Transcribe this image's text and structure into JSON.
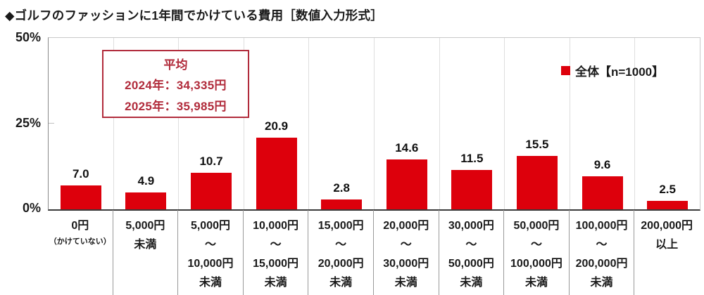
{
  "title": "◆ゴルフのファッションに1年間でかけている費用［数値入力形式］",
  "y_axis": {
    "ticks": [
      "50%",
      "25%",
      "0%"
    ]
  },
  "legend": {
    "label": "全体【n=1000】",
    "marker_color": "#dd000c",
    "position": "top-right"
  },
  "average_box": {
    "lines": [
      "平均",
      "2024年：34,335円",
      "2025年：35,985円"
    ]
  },
  "colors": {
    "bar": "#dd000c",
    "accent_red": "#b12b3b",
    "axis": "#3a3a3a",
    "gridline": "#dedede"
  },
  "chart_data": {
    "type": "bar",
    "title": "ゴルフのファッションに1年間でかけている費用［数値入力形式］",
    "series_name": "全体【n=1000】",
    "categories": [
      "0円（かけていない）",
      "5,000円未満",
      "5,000円～10,000円未満",
      "10,000円～15,000円未満",
      "15,000円～20,000円未満",
      "20,000円～30,000円未満",
      "30,000円～50,000円未満",
      "50,000円～100,000円未満",
      "100,000円～200,000円未満",
      "200,000円以上"
    ],
    "category_lines": [
      [
        "0円",
        "（かけていない）"
      ],
      [
        "5,000円",
        "未満"
      ],
      [
        "5,000円",
        "～",
        "10,000円",
        "未満"
      ],
      [
        "10,000円",
        "～",
        "15,000円",
        "未満"
      ],
      [
        "15,000円",
        "～",
        "20,000円",
        "未満"
      ],
      [
        "20,000円",
        "～",
        "30,000円",
        "未満"
      ],
      [
        "30,000円",
        "～",
        "50,000円",
        "未満"
      ],
      [
        "50,000円",
        "～",
        "100,000円",
        "未満"
      ],
      [
        "100,000円",
        "～",
        "200,000円",
        "未満"
      ],
      [
        "200,000円",
        "以上"
      ]
    ],
    "values": [
      7.0,
      4.9,
      10.7,
      20.9,
      2.8,
      14.6,
      11.5,
      15.5,
      9.6,
      2.5
    ],
    "xlabel": "",
    "ylabel": "%",
    "ylim": [
      0,
      50
    ],
    "yticks": [
      0,
      25,
      50
    ],
    "grid": "vertical category separators",
    "legend_position": "top-right",
    "annotations": [
      "平均",
      "2024年：34,335円",
      "2025年：35,985円"
    ]
  }
}
